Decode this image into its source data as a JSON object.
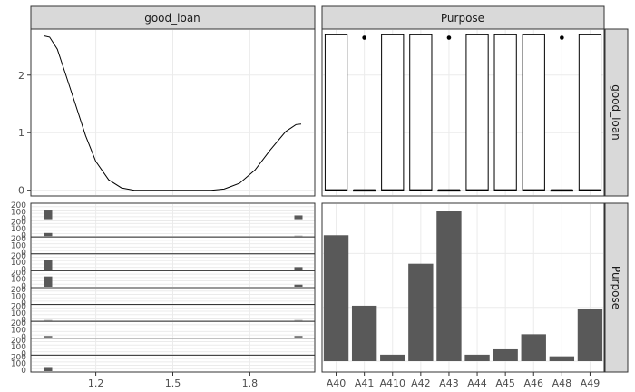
{
  "chart_data": {
    "type": "pairs-plot",
    "colors": {
      "panel_border": "#333333",
      "grid": "#ebebeb",
      "strip_bg": "#d9d9d9",
      "bar": "#595959",
      "line": "#000000"
    },
    "strips": {
      "col1": "good_loan",
      "col2": "Purpose",
      "row1": "good_loan",
      "row2": "Purpose"
    },
    "density": {
      "type": "line",
      "x_range": [
        1.0,
        2.0
      ],
      "ylim": [
        -0.1,
        2.8
      ],
      "y_ticks": [
        0,
        1,
        2
      ],
      "points": [
        [
          1.0,
          2.68
        ],
        [
          1.02,
          2.66
        ],
        [
          1.05,
          2.45
        ],
        [
          1.08,
          2.05
        ],
        [
          1.12,
          1.5
        ],
        [
          1.16,
          0.95
        ],
        [
          1.2,
          0.5
        ],
        [
          1.25,
          0.18
        ],
        [
          1.3,
          0.04
        ],
        [
          1.35,
          0.0
        ],
        [
          1.65,
          0.0
        ],
        [
          1.7,
          0.02
        ],
        [
          1.76,
          0.12
        ],
        [
          1.82,
          0.35
        ],
        [
          1.88,
          0.7
        ],
        [
          1.94,
          1.02
        ],
        [
          1.98,
          1.14
        ],
        [
          2.0,
          1.15
        ]
      ]
    },
    "boxplots": {
      "type": "box",
      "categories": [
        "A40",
        "A41",
        "A410",
        "A42",
        "A43",
        "A44",
        "A45",
        "A46",
        "A48",
        "A49"
      ],
      "series": [
        {
          "q1": 0,
          "q3": 2.7,
          "outlier": null
        },
        {
          "q1": 0,
          "q3": 0,
          "outlier": 2.65
        },
        {
          "q1": 0,
          "q3": 2.7,
          "outlier": null
        },
        {
          "q1": 0,
          "q3": 2.7,
          "outlier": null
        },
        {
          "q1": 0,
          "q3": 0,
          "outlier": 2.65
        },
        {
          "q1": 0,
          "q3": 2.7,
          "outlier": null
        },
        {
          "q1": 0,
          "q3": 2.7,
          "outlier": null
        },
        {
          "q1": 0,
          "q3": 2.7,
          "outlier": null
        },
        {
          "q1": 0,
          "q3": 0,
          "outlier": 2.65
        },
        {
          "q1": 0,
          "q3": 2.7,
          "outlier": null
        }
      ]
    },
    "facet_histograms": {
      "type": "bar",
      "x_ticks": [
        1.2,
        1.5,
        1.8
      ],
      "x_range": [
        1.0,
        2.0
      ],
      "y_tick_labels": [
        "0",
        "100",
        "200"
      ],
      "rows": [
        {
          "left": 140,
          "right": 55
        },
        {
          "left": 45,
          "right": 5
        },
        {
          "left": 0,
          "right": 0
        },
        {
          "left": 140,
          "right": 40
        },
        {
          "left": 150,
          "right": 30
        },
        {
          "left": 0,
          "right": 0
        },
        {
          "left": 5,
          "right": 5
        },
        {
          "left": 20,
          "right": 20
        },
        {
          "left": 0,
          "right": 0
        },
        {
          "left": 60,
          "right": 0
        }
      ]
    },
    "count_bars": {
      "type": "bar",
      "categories": [
        "A40",
        "A41",
        "A410",
        "A42",
        "A43",
        "A44",
        "A45",
        "A46",
        "A48",
        "A49"
      ],
      "values": [
        234,
        103,
        12,
        181,
        280,
        12,
        22,
        50,
        9,
        97
      ],
      "ylim": [
        0,
        300
      ]
    }
  }
}
